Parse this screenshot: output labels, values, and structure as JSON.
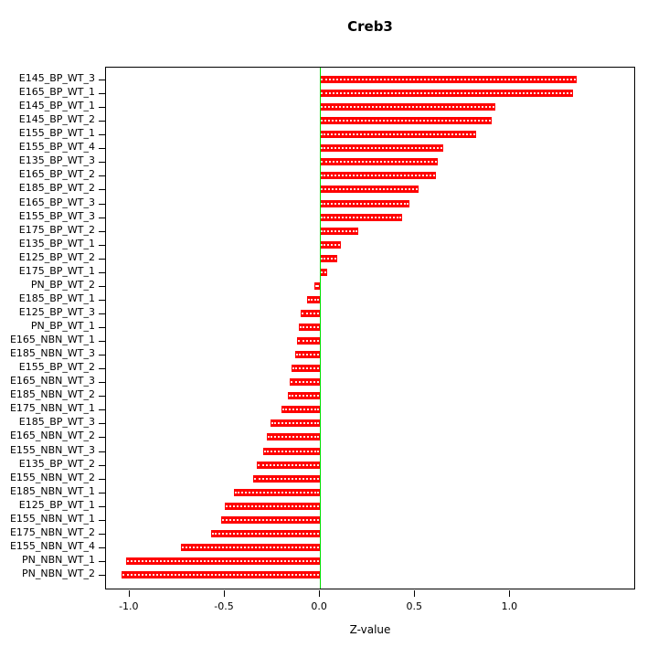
{
  "chart_data": {
    "type": "bar",
    "orientation": "horizontal",
    "title": "Creb3",
    "xlabel": "Z-value",
    "ylabel": "",
    "bar_color": "#ff0000",
    "zero_line_color": "#00dd00",
    "grid": false,
    "legend": "none",
    "xlim": [
      -1.124,
      1.651
    ],
    "x_ticks": [
      -1.0,
      -0.5,
      0.0,
      0.5,
      1.0
    ],
    "categories": [
      "E145_BP_WT_3",
      "E165_BP_WT_1",
      "E145_BP_WT_1",
      "E145_BP_WT_2",
      "E155_BP_WT_1",
      "E155_BP_WT_4",
      "E135_BP_WT_3",
      "E165_BP_WT_2",
      "E185_BP_WT_2",
      "E165_BP_WT_3",
      "E155_BP_WT_3",
      "E175_BP_WT_2",
      "E135_BP_WT_1",
      "E125_BP_WT_2",
      "E175_BP_WT_1",
      "PN_BP_WT_2",
      "E185_BP_WT_1",
      "E125_BP_WT_3",
      "PN_BP_WT_1",
      "E165_NBN_WT_1",
      "E185_NBN_WT_3",
      "E155_BP_WT_2",
      "E165_NBN_WT_3",
      "E185_NBN_WT_2",
      "E175_NBN_WT_1",
      "E185_BP_WT_3",
      "E165_NBN_WT_2",
      "E155_NBN_WT_3",
      "E135_BP_WT_2",
      "E155_NBN_WT_2",
      "E185_NBN_WT_1",
      "E125_BP_WT_1",
      "E155_NBN_WT_1",
      "E175_NBN_WT_2",
      "E155_NBN_WT_4",
      "PN_NBN_WT_1",
      "PN_NBN_WT_2"
    ],
    "values": [
      1.35,
      1.33,
      0.92,
      0.9,
      0.82,
      0.65,
      0.62,
      0.61,
      0.52,
      0.47,
      0.43,
      0.2,
      0.11,
      0.09,
      0.04,
      -0.03,
      -0.07,
      -0.1,
      -0.11,
      -0.12,
      -0.13,
      -0.15,
      -0.16,
      -0.17,
      -0.2,
      -0.26,
      -0.28,
      -0.3,
      -0.33,
      -0.35,
      -0.45,
      -0.5,
      -0.52,
      -0.57,
      -0.73,
      -1.02,
      -1.04
    ]
  }
}
